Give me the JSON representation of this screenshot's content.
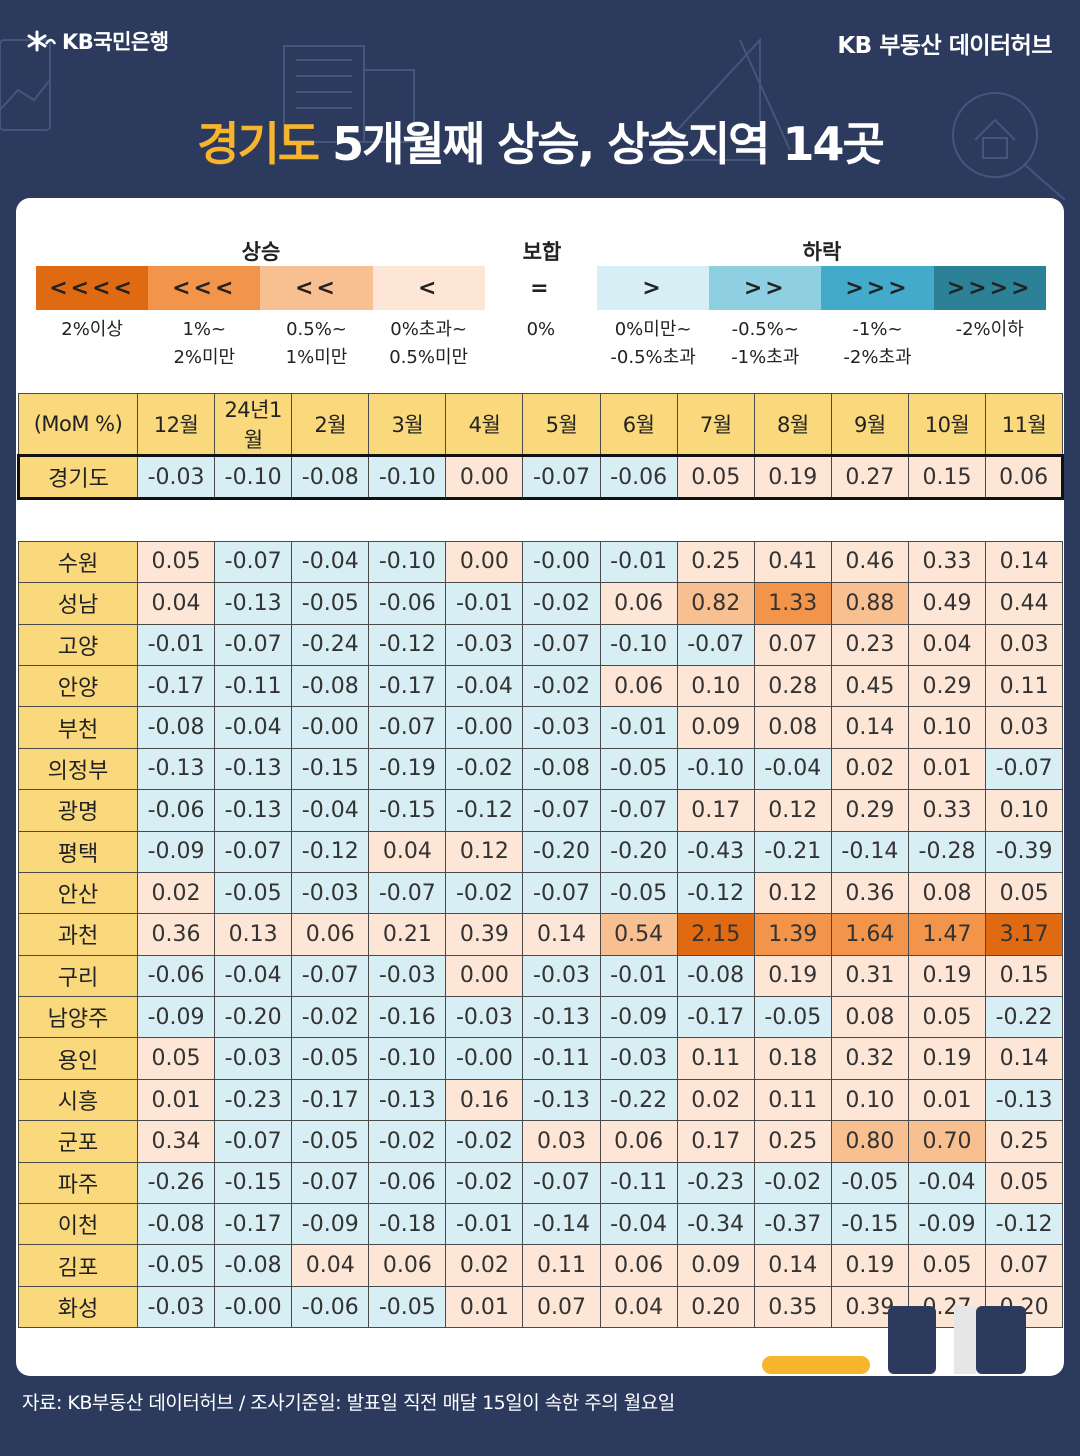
{
  "header": {
    "brand": "KB국민은행",
    "right": "KB 부동산 데이터허브"
  },
  "title": {
    "highlight": "경기도",
    "rest": " 5개월째 상승, 상승지역 14곳"
  },
  "colors": {
    "rise4": "#e06a12",
    "rise3": "#f2944a",
    "rise2": "#f8bf90",
    "rise1": "#fde6d6",
    "flat": "#ffffff",
    "fall1": "#d8eef5",
    "fall2": "#8fcfe2",
    "fall3": "#43aacb",
    "fall4": "#2d8196",
    "header": "#fad87c"
  },
  "legend": {
    "rise_label": "상승",
    "flat_label": "보합",
    "fall_label": "하락",
    "items": [
      {
        "symbol": "<<<<",
        "label": "2%이상",
        "color": "#e06a12"
      },
      {
        "symbol": "<<<",
        "label": "1%~\n2%미만",
        "color": "#f2944a"
      },
      {
        "symbol": "<<",
        "label": "0.5%~\n1%미만",
        "color": "#f8bf90"
      },
      {
        "symbol": "<",
        "label": "0%초과~\n0.5%미만",
        "color": "#fde6d6"
      },
      {
        "symbol": "=",
        "label": "0%",
        "color": "#ffffff"
      },
      {
        "symbol": ">",
        "label": "0%미만~\n-0.5%초과",
        "color": "#d8eef5"
      },
      {
        "symbol": ">>",
        "label": "-0.5%~\n-1%초과",
        "color": "#8fcfe2"
      },
      {
        "symbol": ">>>",
        "label": "-1%~\n-2%초과",
        "color": "#43aacb"
      },
      {
        "symbol": ">>>>",
        "label": "-2%이하",
        "color": "#2d8196"
      }
    ]
  },
  "chart_data": {
    "type": "heatmap",
    "corner_label": "(MoM %)",
    "columns": [
      "12월",
      "24년1월",
      "2월",
      "3월",
      "4월",
      "5월",
      "6월",
      "7월",
      "8월",
      "9월",
      "10월",
      "11월"
    ],
    "rows": [
      {
        "name": "경기도",
        "values": [
          "-0.03",
          "-0.10",
          "-0.08",
          "-0.10",
          "0.00",
          "-0.07",
          "-0.06",
          "0.05",
          "0.19",
          "0.27",
          "0.15",
          "0.06"
        ]
      },
      {
        "name": "수원",
        "values": [
          "0.05",
          "-0.07",
          "-0.04",
          "-0.10",
          "0.00",
          "-0.00",
          "-0.01",
          "0.25",
          "0.41",
          "0.46",
          "0.33",
          "0.14"
        ]
      },
      {
        "name": "성남",
        "values": [
          "0.04",
          "-0.13",
          "-0.05",
          "-0.06",
          "-0.01",
          "-0.02",
          "0.06",
          "0.82",
          "1.33",
          "0.88",
          "0.49",
          "0.44"
        ]
      },
      {
        "name": "고양",
        "values": [
          "-0.01",
          "-0.07",
          "-0.24",
          "-0.12",
          "-0.03",
          "-0.07",
          "-0.10",
          "-0.07",
          "0.07",
          "0.23",
          "0.04",
          "0.03"
        ]
      },
      {
        "name": "안양",
        "values": [
          "-0.17",
          "-0.11",
          "-0.08",
          "-0.17",
          "-0.04",
          "-0.02",
          "0.06",
          "0.10",
          "0.28",
          "0.45",
          "0.29",
          "0.11"
        ]
      },
      {
        "name": "부천",
        "values": [
          "-0.08",
          "-0.04",
          "-0.00",
          "-0.07",
          "-0.00",
          "-0.03",
          "-0.01",
          "0.09",
          "0.08",
          "0.14",
          "0.10",
          "0.03"
        ]
      },
      {
        "name": "의정부",
        "values": [
          "-0.13",
          "-0.13",
          "-0.15",
          "-0.19",
          "-0.02",
          "-0.08",
          "-0.05",
          "-0.10",
          "-0.04",
          "0.02",
          "0.01",
          "-0.07"
        ]
      },
      {
        "name": "광명",
        "values": [
          "-0.06",
          "-0.13",
          "-0.04",
          "-0.15",
          "-0.12",
          "-0.07",
          "-0.07",
          "0.17",
          "0.12",
          "0.29",
          "0.33",
          "0.10"
        ]
      },
      {
        "name": "평택",
        "values": [
          "-0.09",
          "-0.07",
          "-0.12",
          "0.04",
          "0.12",
          "-0.20",
          "-0.20",
          "-0.43",
          "-0.21",
          "-0.14",
          "-0.28",
          "-0.39"
        ]
      },
      {
        "name": "안산",
        "values": [
          "0.02",
          "-0.05",
          "-0.03",
          "-0.07",
          "-0.02",
          "-0.07",
          "-0.05",
          "-0.12",
          "0.12",
          "0.36",
          "0.08",
          "0.05"
        ]
      },
      {
        "name": "과천",
        "values": [
          "0.36",
          "0.13",
          "0.06",
          "0.21",
          "0.39",
          "0.14",
          "0.54",
          "2.15",
          "1.39",
          "1.64",
          "1.47",
          "3.17"
        ]
      },
      {
        "name": "구리",
        "values": [
          "-0.06",
          "-0.04",
          "-0.07",
          "-0.03",
          "0.00",
          "-0.03",
          "-0.01",
          "-0.08",
          "0.19",
          "0.31",
          "0.19",
          "0.15"
        ]
      },
      {
        "name": "남양주",
        "values": [
          "-0.09",
          "-0.20",
          "-0.02",
          "-0.16",
          "-0.03",
          "-0.13",
          "-0.09",
          "-0.17",
          "-0.05",
          "0.08",
          "0.05",
          "-0.22"
        ]
      },
      {
        "name": "용인",
        "values": [
          "0.05",
          "-0.03",
          "-0.05",
          "-0.10",
          "-0.00",
          "-0.11",
          "-0.03",
          "0.11",
          "0.18",
          "0.32",
          "0.19",
          "0.14"
        ]
      },
      {
        "name": "시흥",
        "values": [
          "0.01",
          "-0.23",
          "-0.17",
          "-0.13",
          "0.16",
          "-0.13",
          "-0.22",
          "0.02",
          "0.11",
          "0.10",
          "0.01",
          "-0.13"
        ]
      },
      {
        "name": "군포",
        "values": [
          "0.34",
          "-0.07",
          "-0.05",
          "-0.02",
          "-0.02",
          "0.03",
          "0.06",
          "0.17",
          "0.25",
          "0.80",
          "0.70",
          "0.25"
        ]
      },
      {
        "name": "파주",
        "values": [
          "-0.26",
          "-0.15",
          "-0.07",
          "-0.06",
          "-0.02",
          "-0.07",
          "-0.11",
          "-0.23",
          "-0.02",
          "-0.05",
          "-0.04",
          "0.05"
        ]
      },
      {
        "name": "이천",
        "values": [
          "-0.08",
          "-0.17",
          "-0.09",
          "-0.18",
          "-0.01",
          "-0.14",
          "-0.04",
          "-0.34",
          "-0.37",
          "-0.15",
          "-0.09",
          "-0.12"
        ]
      },
      {
        "name": "김포",
        "values": [
          "-0.05",
          "-0.08",
          "0.04",
          "0.06",
          "0.02",
          "0.11",
          "0.06",
          "0.09",
          "0.14",
          "0.19",
          "0.05",
          "0.07"
        ]
      },
      {
        "name": "화성",
        "values": [
          "-0.03",
          "-0.00",
          "-0.06",
          "-0.05",
          "0.01",
          "0.07",
          "0.04",
          "0.20",
          "0.35",
          "0.39",
          "0.27",
          "0.20"
        ]
      }
    ]
  },
  "footer": "자료: KB부동산 데이터허브 / 조사기준일: 발표일 직전 매달 15일이 속한 주의 월요일"
}
